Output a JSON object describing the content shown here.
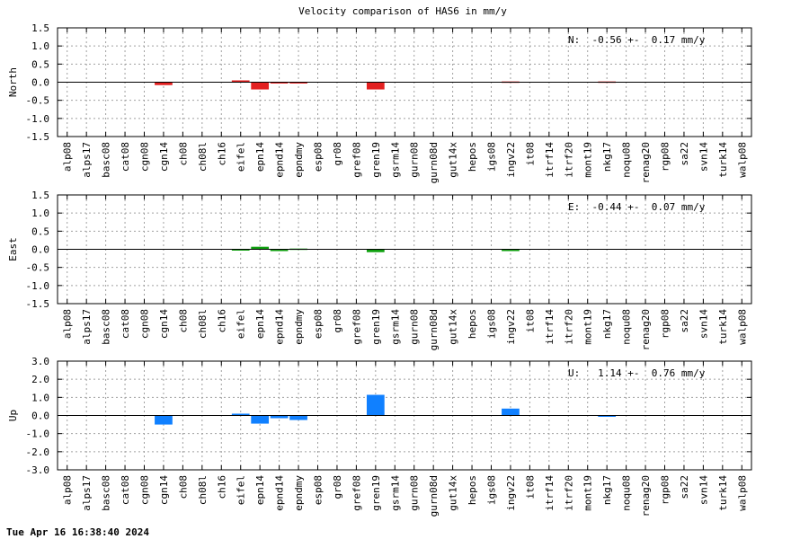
{
  "chart_data": [
    {
      "type": "bar",
      "title": "Velocity comparison of HAS6 in mm/y",
      "ylabel": "North",
      "ylim": [
        -1.5,
        1.5
      ],
      "yticks": [
        "1.5",
        "1.0",
        "0.5",
        "0.0",
        "-0.5",
        "-1.0",
        "-1.5"
      ],
      "ytick_values": [
        1.5,
        1.0,
        0.5,
        0.0,
        -0.5,
        -1.0,
        -1.5
      ],
      "grid": true,
      "annotation": "N:  -0.56 +-  0.17 mm/y",
      "color": "#e32020",
      "categories": [
        "alp08",
        "alps17",
        "basc08",
        "cat08",
        "cgn08",
        "cgn14",
        "ch08",
        "ch08l",
        "ch16",
        "eifel",
        "epn14",
        "epnd14",
        "epndmy",
        "esp08",
        "gr08",
        "gref08",
        "gren19",
        "gsrm14",
        "gurn08",
        "gurn08d",
        "gut14x",
        "hepos",
        "igs08",
        "ingv22",
        "it08",
        "itrf14",
        "itrf20",
        "mont19",
        "nkg17",
        "noqu08",
        "renag20",
        "rgp08",
        "sa22",
        "svn14",
        "turk14",
        "walp08"
      ],
      "values": [
        0,
        0,
        0,
        0,
        0,
        -0.08,
        0,
        0,
        0,
        0.05,
        -0.2,
        -0.03,
        -0.03,
        0,
        0,
        0,
        -0.2,
        0,
        0,
        0,
        0,
        0,
        0,
        0.02,
        0,
        0,
        0,
        0,
        0.02,
        0,
        0,
        0,
        0,
        0,
        0,
        0
      ]
    },
    {
      "type": "bar",
      "ylabel": "East",
      "ylim": [
        -1.5,
        1.5
      ],
      "yticks": [
        "1.5",
        "1.0",
        "0.5",
        "0.0",
        "-0.5",
        "-1.0",
        "-1.5"
      ],
      "ytick_values": [
        1.5,
        1.0,
        0.5,
        0.0,
        -0.5,
        -1.0,
        -1.5
      ],
      "grid": true,
      "annotation": "E:  -0.44 +-  0.07 mm/y",
      "color": "#10a010",
      "categories": [
        "alp08",
        "alps17",
        "basc08",
        "cat08",
        "cgn08",
        "cgn14",
        "ch08",
        "ch08l",
        "ch16",
        "eifel",
        "epn14",
        "epnd14",
        "epndmy",
        "esp08",
        "gr08",
        "gref08",
        "gren19",
        "gsrm14",
        "gurn08",
        "gurn08d",
        "gut14x",
        "hepos",
        "igs08",
        "ingv22",
        "it08",
        "itrf14",
        "itrf20",
        "mont19",
        "nkg17",
        "noqu08",
        "renag20",
        "rgp08",
        "sa22",
        "svn14",
        "turk14",
        "walp08"
      ],
      "values": [
        0,
        0,
        0,
        0,
        0,
        0,
        0,
        0,
        0,
        -0.02,
        0.07,
        -0.05,
        0.02,
        0,
        0,
        0,
        -0.08,
        0,
        0,
        0,
        0,
        0,
        0,
        -0.05,
        0,
        0,
        0,
        0,
        0,
        0,
        0,
        0,
        0,
        0,
        0,
        0
      ]
    },
    {
      "type": "bar",
      "ylabel": "Up",
      "ylim": [
        -3.0,
        3.0
      ],
      "yticks": [
        "3.0",
        "2.0",
        "1.0",
        "0.0",
        "-1.0",
        "-2.0",
        "-3.0"
      ],
      "ytick_values": [
        3.0,
        2.0,
        1.0,
        0.0,
        -1.0,
        -2.0,
        -3.0
      ],
      "grid": true,
      "annotation": "U:   1.14 +-  0.76 mm/y",
      "color": "#1080ff",
      "categories": [
        "alp08",
        "alps17",
        "basc08",
        "cat08",
        "cgn08",
        "cgn14",
        "ch08",
        "ch08l",
        "ch16",
        "eifel",
        "epn14",
        "epnd14",
        "epndmy",
        "esp08",
        "gr08",
        "gref08",
        "gren19",
        "gsrm14",
        "gurn08",
        "gurn08d",
        "gut14x",
        "hepos",
        "igs08",
        "ingv22",
        "it08",
        "itrf14",
        "itrf20",
        "mont19",
        "nkg17",
        "noqu08",
        "renag20",
        "rgp08",
        "sa22",
        "svn14",
        "turk14",
        "walp08"
      ],
      "values": [
        0,
        0,
        0,
        0,
        0,
        -0.5,
        0,
        0,
        0,
        0.1,
        -0.45,
        -0.15,
        -0.25,
        0,
        0,
        0,
        1.14,
        0,
        0,
        0,
        0,
        0,
        0,
        0.38,
        0,
        0,
        0,
        0,
        -0.05,
        0,
        0,
        0,
        0,
        0,
        0,
        0
      ]
    }
  ],
  "footer": {
    "timestamp": "Tue Apr 16 16:38:40 2024"
  }
}
